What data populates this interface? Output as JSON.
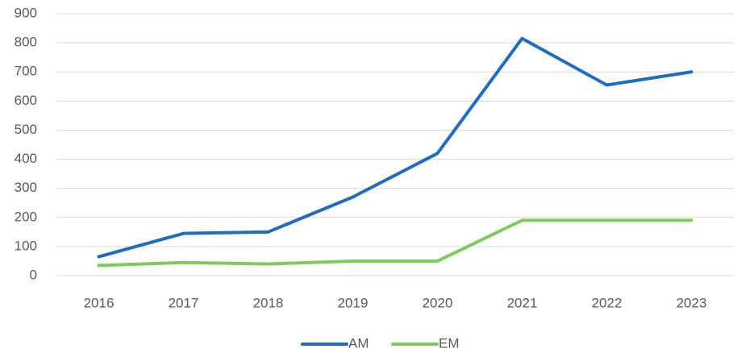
{
  "chart_data": {
    "type": "line",
    "categories": [
      "2016",
      "2017",
      "2018",
      "2019",
      "2020",
      "2021",
      "2022",
      "2023"
    ],
    "series": [
      {
        "name": "AM",
        "color": "#1f6cc1",
        "values": [
          65,
          145,
          150,
          270,
          420,
          815,
          655,
          700
        ]
      },
      {
        "name": "EM",
        "color": "#7dcb5c",
        "values": [
          35,
          45,
          40,
          50,
          50,
          190,
          190,
          190
        ]
      }
    ],
    "ylim": [
      0,
      900
    ],
    "yticks": [
      0,
      100,
      200,
      300,
      400,
      500,
      600,
      700,
      800,
      900
    ],
    "grid": true,
    "legend": "bottom"
  }
}
